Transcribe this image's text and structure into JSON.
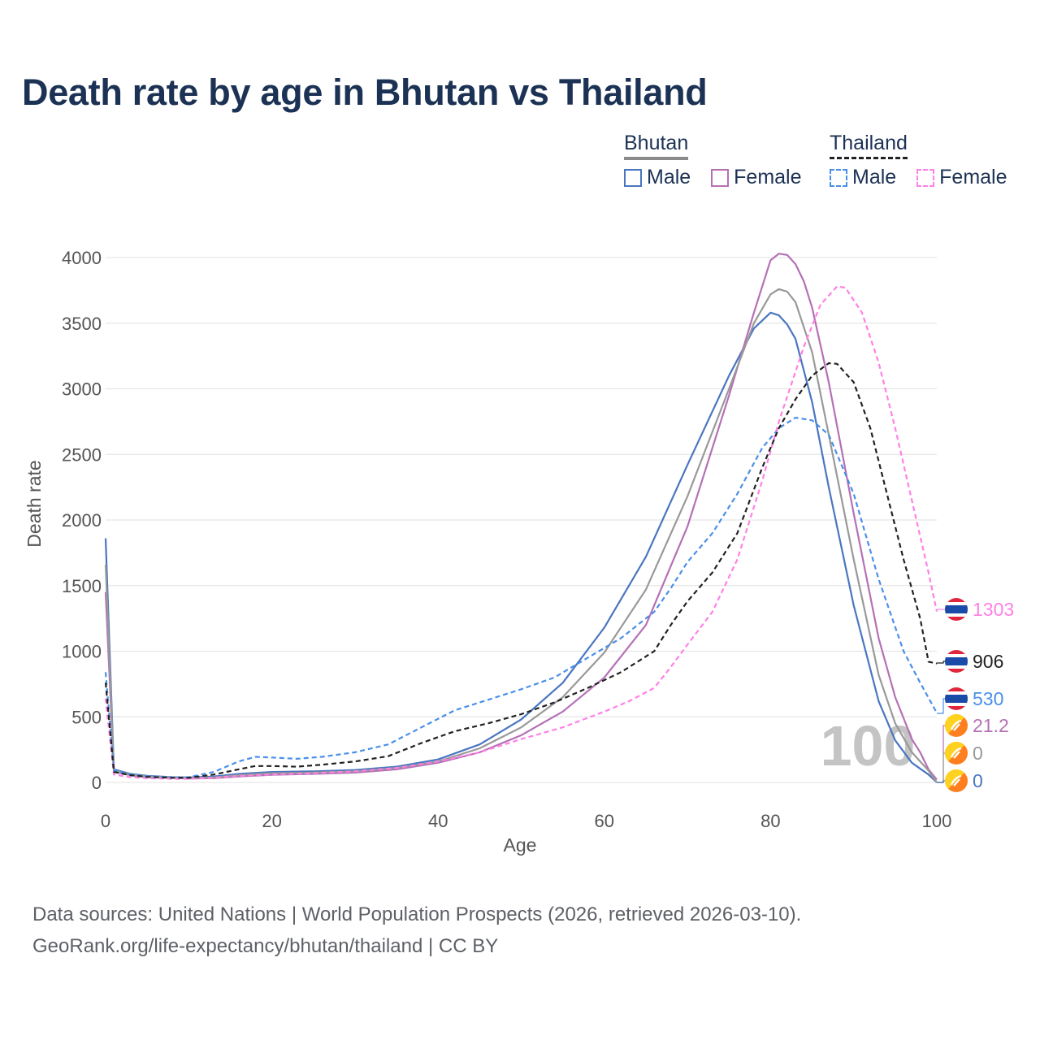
{
  "title": "Death rate by age in Bhutan vs Thailand",
  "legend": {
    "bhutan": {
      "label": "Bhutan",
      "male": "Male",
      "female": "Female"
    },
    "thailand": {
      "label": "Thailand",
      "male": "Male",
      "female": "Female"
    }
  },
  "footer": {
    "line1": "Data sources: United Nations | World Population Prospects (2026, retrieved 2026-03-10).",
    "line2": "GeoRank.org/life-expectancy/bhutan/thailand | CC BY"
  },
  "watermark": "100",
  "end_labels": [
    {
      "text": "1303",
      "color": "#ff80e6",
      "flag": "thailand"
    },
    {
      "text": "906",
      "color": "#222222",
      "flag": "thailand"
    },
    {
      "text": "530",
      "color": "#4a8fe8",
      "flag": "thailand"
    },
    {
      "text": "21.2",
      "color": "#b570b5",
      "flag": "bhutan"
    },
    {
      "text": "0",
      "color": "#999999",
      "flag": "bhutan"
    },
    {
      "text": "0",
      "color": "#4a76c0",
      "flag": "bhutan"
    }
  ],
  "chart_data": {
    "type": "line",
    "title": "Death rate by age in Bhutan vs Thailand",
    "xlabel": "Age",
    "ylabel": "Death rate",
    "xlim": [
      0,
      100
    ],
    "ylim": [
      0,
      4000
    ],
    "xticks": [
      0,
      20,
      40,
      60,
      80,
      100
    ],
    "yticks": [
      0,
      500,
      1000,
      1500,
      2000,
      2500,
      3000,
      3500,
      4000
    ],
    "grid": true,
    "series": [
      {
        "name": "Bhutan Male",
        "color": "#4a76c0",
        "dash": false,
        "x": [
          0,
          1,
          3,
          5,
          8,
          10,
          13,
          16,
          20,
          25,
          30,
          35,
          40,
          45,
          50,
          55,
          60,
          65,
          70,
          75,
          78,
          80,
          81,
          82,
          83,
          85,
          87,
          90,
          93,
          95,
          97,
          99,
          100
        ],
        "y": [
          1860,
          100,
          65,
          50,
          40,
          38,
          45,
          65,
          80,
          85,
          95,
          120,
          175,
          290,
          480,
          760,
          1180,
          1720,
          2420,
          3100,
          3460,
          3580,
          3560,
          3490,
          3380,
          2900,
          2250,
          1350,
          620,
          320,
          150,
          60,
          0
        ]
      },
      {
        "name": "Bhutan Female",
        "color": "#b570b5",
        "dash": false,
        "x": [
          0,
          1,
          3,
          5,
          8,
          10,
          13,
          16,
          20,
          25,
          30,
          35,
          40,
          45,
          50,
          55,
          60,
          65,
          70,
          75,
          78,
          80,
          81,
          82,
          83,
          84,
          85,
          87,
          90,
          93,
          95,
          97,
          98,
          99,
          100
        ],
        "y": [
          1450,
          80,
          55,
          42,
          35,
          30,
          32,
          45,
          58,
          65,
          75,
          100,
          150,
          230,
          360,
          540,
          800,
          1200,
          1950,
          2950,
          3580,
          3980,
          4030,
          4020,
          3950,
          3820,
          3620,
          3050,
          2050,
          1100,
          650,
          330,
          230,
          100,
          21.2
        ]
      },
      {
        "name": "Bhutan Total",
        "color": "#999999",
        "dash": false,
        "x": [
          0,
          1,
          3,
          5,
          8,
          10,
          13,
          16,
          20,
          25,
          30,
          35,
          40,
          45,
          50,
          55,
          60,
          65,
          70,
          75,
          78,
          80,
          81,
          82,
          83,
          85,
          87,
          90,
          93,
          95,
          97,
          99,
          100
        ],
        "y": [
          1660,
          90,
          60,
          46,
          38,
          34,
          38,
          55,
          70,
          75,
          85,
          110,
          160,
          260,
          420,
          650,
          990,
          1470,
          2180,
          3000,
          3500,
          3720,
          3760,
          3740,
          3660,
          3280,
          2650,
          1700,
          820,
          450,
          230,
          90,
          0
        ]
      },
      {
        "name": "Thailand Male",
        "color": "#4a8fe8",
        "dash": true,
        "x": [
          0,
          1,
          3,
          5,
          8,
          10,
          13,
          16,
          18,
          20,
          23,
          26,
          30,
          34,
          38,
          42,
          46,
          50,
          54,
          58,
          62,
          66,
          68,
          70,
          73,
          76,
          79,
          81,
          83,
          85,
          87,
          90,
          93,
          96,
          98,
          100
        ],
        "y": [
          840,
          90,
          60,
          45,
          38,
          40,
          80,
          160,
          195,
          190,
          180,
          195,
          230,
          290,
          420,
          550,
          630,
          710,
          800,
          950,
          1100,
          1300,
          1480,
          1680,
          1900,
          2200,
          2550,
          2700,
          2780,
          2760,
          2650,
          2200,
          1550,
          1000,
          760,
          530
        ]
      },
      {
        "name": "Thailand Female",
        "color": "#ff80e6",
        "dash": true,
        "x": [
          0,
          1,
          3,
          5,
          8,
          10,
          13,
          16,
          20,
          25,
          30,
          35,
          40,
          45,
          50,
          55,
          60,
          63,
          66,
          68,
          70,
          73,
          76,
          79,
          81,
          84,
          86,
          88,
          89,
          91,
          93,
          95,
          97,
          99,
          100
        ],
        "y": [
          640,
          60,
          40,
          32,
          28,
          28,
          35,
          50,
          60,
          70,
          85,
          110,
          160,
          230,
          330,
          420,
          540,
          620,
          720,
          880,
          1050,
          1300,
          1700,
          2300,
          2750,
          3320,
          3640,
          3780,
          3770,
          3580,
          3200,
          2700,
          2150,
          1600,
          1303
        ]
      },
      {
        "name": "Thailand Total",
        "color": "#222222",
        "dash": true,
        "x": [
          0,
          1,
          3,
          5,
          8,
          10,
          13,
          16,
          18,
          20,
          23,
          26,
          30,
          34,
          38,
          42,
          46,
          50,
          54,
          58,
          62,
          66,
          68,
          70,
          73,
          76,
          79,
          81,
          83,
          85,
          87,
          88,
          90,
          92,
          94,
          96,
          98,
          99,
          100
        ],
        "y": [
          760,
          80,
          55,
          42,
          35,
          36,
          60,
          100,
          125,
          125,
          120,
          135,
          160,
          200,
          300,
          390,
          450,
          520,
          610,
          720,
          840,
          1000,
          1200,
          1380,
          1600,
          1900,
          2400,
          2700,
          2920,
          3100,
          3195,
          3190,
          3050,
          2700,
          2200,
          1700,
          1250,
          920,
          906
        ]
      }
    ]
  }
}
